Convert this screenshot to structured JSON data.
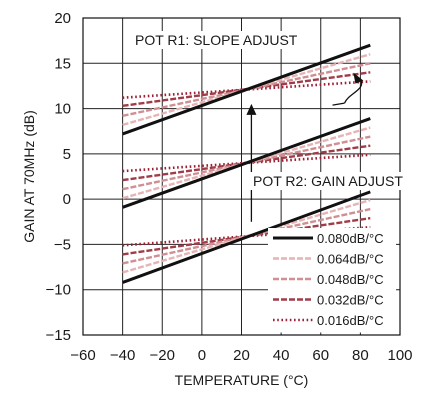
{
  "chart_data": {
    "type": "line",
    "xlabel": "TEMPERATURE (°C)",
    "ylabel": "GAIN AT 70MHz (dB)",
    "xlim": [
      -60,
      100
    ],
    "ylim": [
      -15,
      20
    ],
    "xticks": [
      -60,
      -40,
      -20,
      0,
      20,
      40,
      60,
      80,
      100
    ],
    "yticks": [
      -15,
      -10,
      -5,
      0,
      5,
      10,
      15,
      20
    ],
    "xtick_labels": [
      "−60",
      "−40",
      "−20",
      "0",
      "20",
      "40",
      "60",
      "80",
      "100"
    ],
    "ytick_labels": [
      "−15",
      "−10",
      "−5",
      "0",
      "5",
      "10",
      "15",
      "20"
    ],
    "grid": true,
    "legend_position": "bottom-right",
    "annotations": {
      "slope": "POT R1: SLOPE ADJUST",
      "gain": "POT R2: GAIN ADJUST"
    },
    "series_styles": [
      {
        "name": "0.080dB/°C",
        "color": "#111111",
        "style": "solid"
      },
      {
        "name": "0.064dB/°C",
        "color": "#e6b4b4",
        "style": "dashed"
      },
      {
        "name": "0.048dB/°C",
        "color": "#cf8f93",
        "style": "dashed"
      },
      {
        "name": "0.032dB/°C",
        "color": "#a03c48",
        "style": "dashed"
      },
      {
        "name": "0.016dB/°C",
        "color": "#9e1f35",
        "style": "dotted"
      }
    ],
    "groups": [
      {
        "pivot": 12,
        "series": [
          {
            "name": "0.080dB/°C",
            "x": [
              -40,
              85
            ],
            "y": [
              7.2,
              17.0
            ]
          },
          {
            "name": "0.064dB/°C",
            "x": [
              -40,
              85
            ],
            "y": [
              8.2,
              16.0
            ]
          },
          {
            "name": "0.048dB/°C",
            "x": [
              -40,
              85
            ],
            "y": [
              9.2,
              15.0
            ]
          },
          {
            "name": "0.032dB/°C",
            "x": [
              -40,
              85
            ],
            "y": [
              10.3,
              14.0
            ]
          },
          {
            "name": "0.016dB/°C",
            "x": [
              -40,
              85
            ],
            "y": [
              11.2,
              13.0
            ]
          }
        ]
      },
      {
        "pivot": 4,
        "series": [
          {
            "name": "0.080dB/°C",
            "x": [
              -40,
              85
            ],
            "y": [
              -0.9,
              8.9
            ]
          },
          {
            "name": "0.064dB/°C",
            "x": [
              -40,
              85
            ],
            "y": [
              0.1,
              7.9
            ]
          },
          {
            "name": "0.048dB/°C",
            "x": [
              -40,
              85
            ],
            "y": [
              1.1,
              6.9
            ]
          },
          {
            "name": "0.032dB/°C",
            "x": [
              -40,
              85
            ],
            "y": [
              2.1,
              5.9
            ]
          },
          {
            "name": "0.016dB/°C",
            "x": [
              -40,
              85
            ],
            "y": [
              3.1,
              4.9
            ]
          }
        ]
      },
      {
        "pivot": -4,
        "series": [
          {
            "name": "0.080dB/°C",
            "x": [
              -40,
              85
            ],
            "y": [
              -9.2,
              0.8
            ]
          },
          {
            "name": "0.064dB/°C",
            "x": [
              -40,
              85
            ],
            "y": [
              -8.1,
              -0.1
            ]
          },
          {
            "name": "0.048dB/°C",
            "x": [
              -40,
              85
            ],
            "y": [
              -7.1,
              -1.1
            ]
          },
          {
            "name": "0.032dB/°C",
            "x": [
              -40,
              85
            ],
            "y": [
              -6.1,
              -2.1
            ]
          },
          {
            "name": "0.016dB/°C",
            "x": [
              -40,
              85
            ],
            "y": [
              -5.1,
              -3.1
            ]
          }
        ]
      }
    ]
  }
}
